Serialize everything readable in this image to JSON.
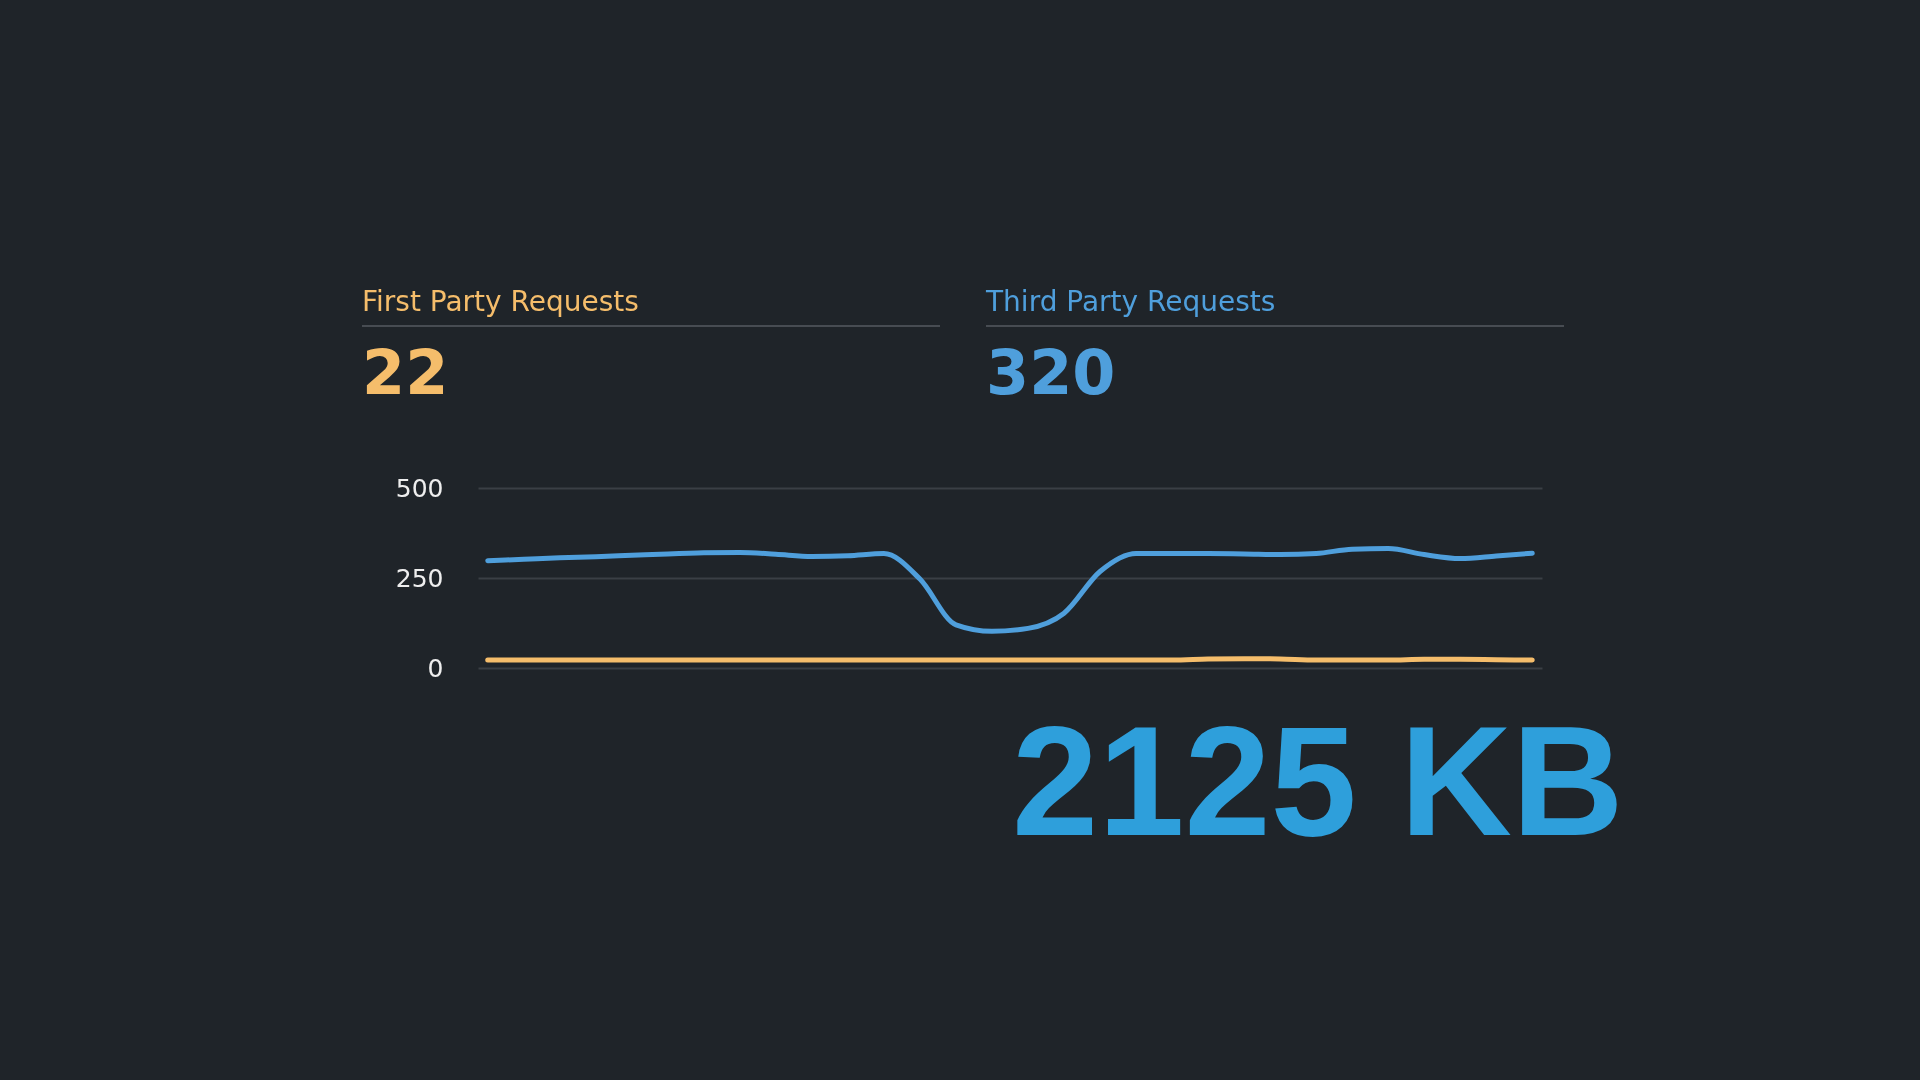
{
  "chart_data": {
    "type": "line",
    "categories": [
      null,
      null,
      null,
      null,
      null,
      null,
      null,
      null,
      null,
      null,
      null,
      null,
      null,
      null,
      null,
      null,
      null,
      null,
      null,
      null,
      null,
      null,
      null,
      null,
      null,
      null,
      null,
      null,
      null,
      null
    ],
    "series": [
      {
        "name": "First Party Requests",
        "color": "#f5bd6b",
        "values": [
          22,
          22,
          22,
          22,
          22,
          22,
          22,
          22,
          22,
          22,
          22,
          22,
          22,
          22,
          22,
          22,
          22,
          22,
          22,
          22,
          25,
          26,
          25,
          22,
          22,
          22,
          24,
          24,
          23,
          22
        ]
      },
      {
        "name": "Third Party Requests",
        "color": "#4f9fdc",
        "values": [
          298,
          302,
          306,
          309,
          313,
          317,
          320,
          321,
          316,
          310,
          312,
          318,
          247,
          120,
          102,
          110,
          152,
          268,
          318,
          318,
          318,
          317,
          315,
          318,
          330,
          332,
          315,
          304,
          311,
          319
        ]
      }
    ],
    "ylim": [
      0,
      500
    ],
    "yticks": [
      0,
      250,
      500
    ],
    "grid": "y",
    "legend": "top",
    "tick_labels": "y",
    "annotations": [
      "22",
      "320",
      "2125 KB"
    ]
  }
}
